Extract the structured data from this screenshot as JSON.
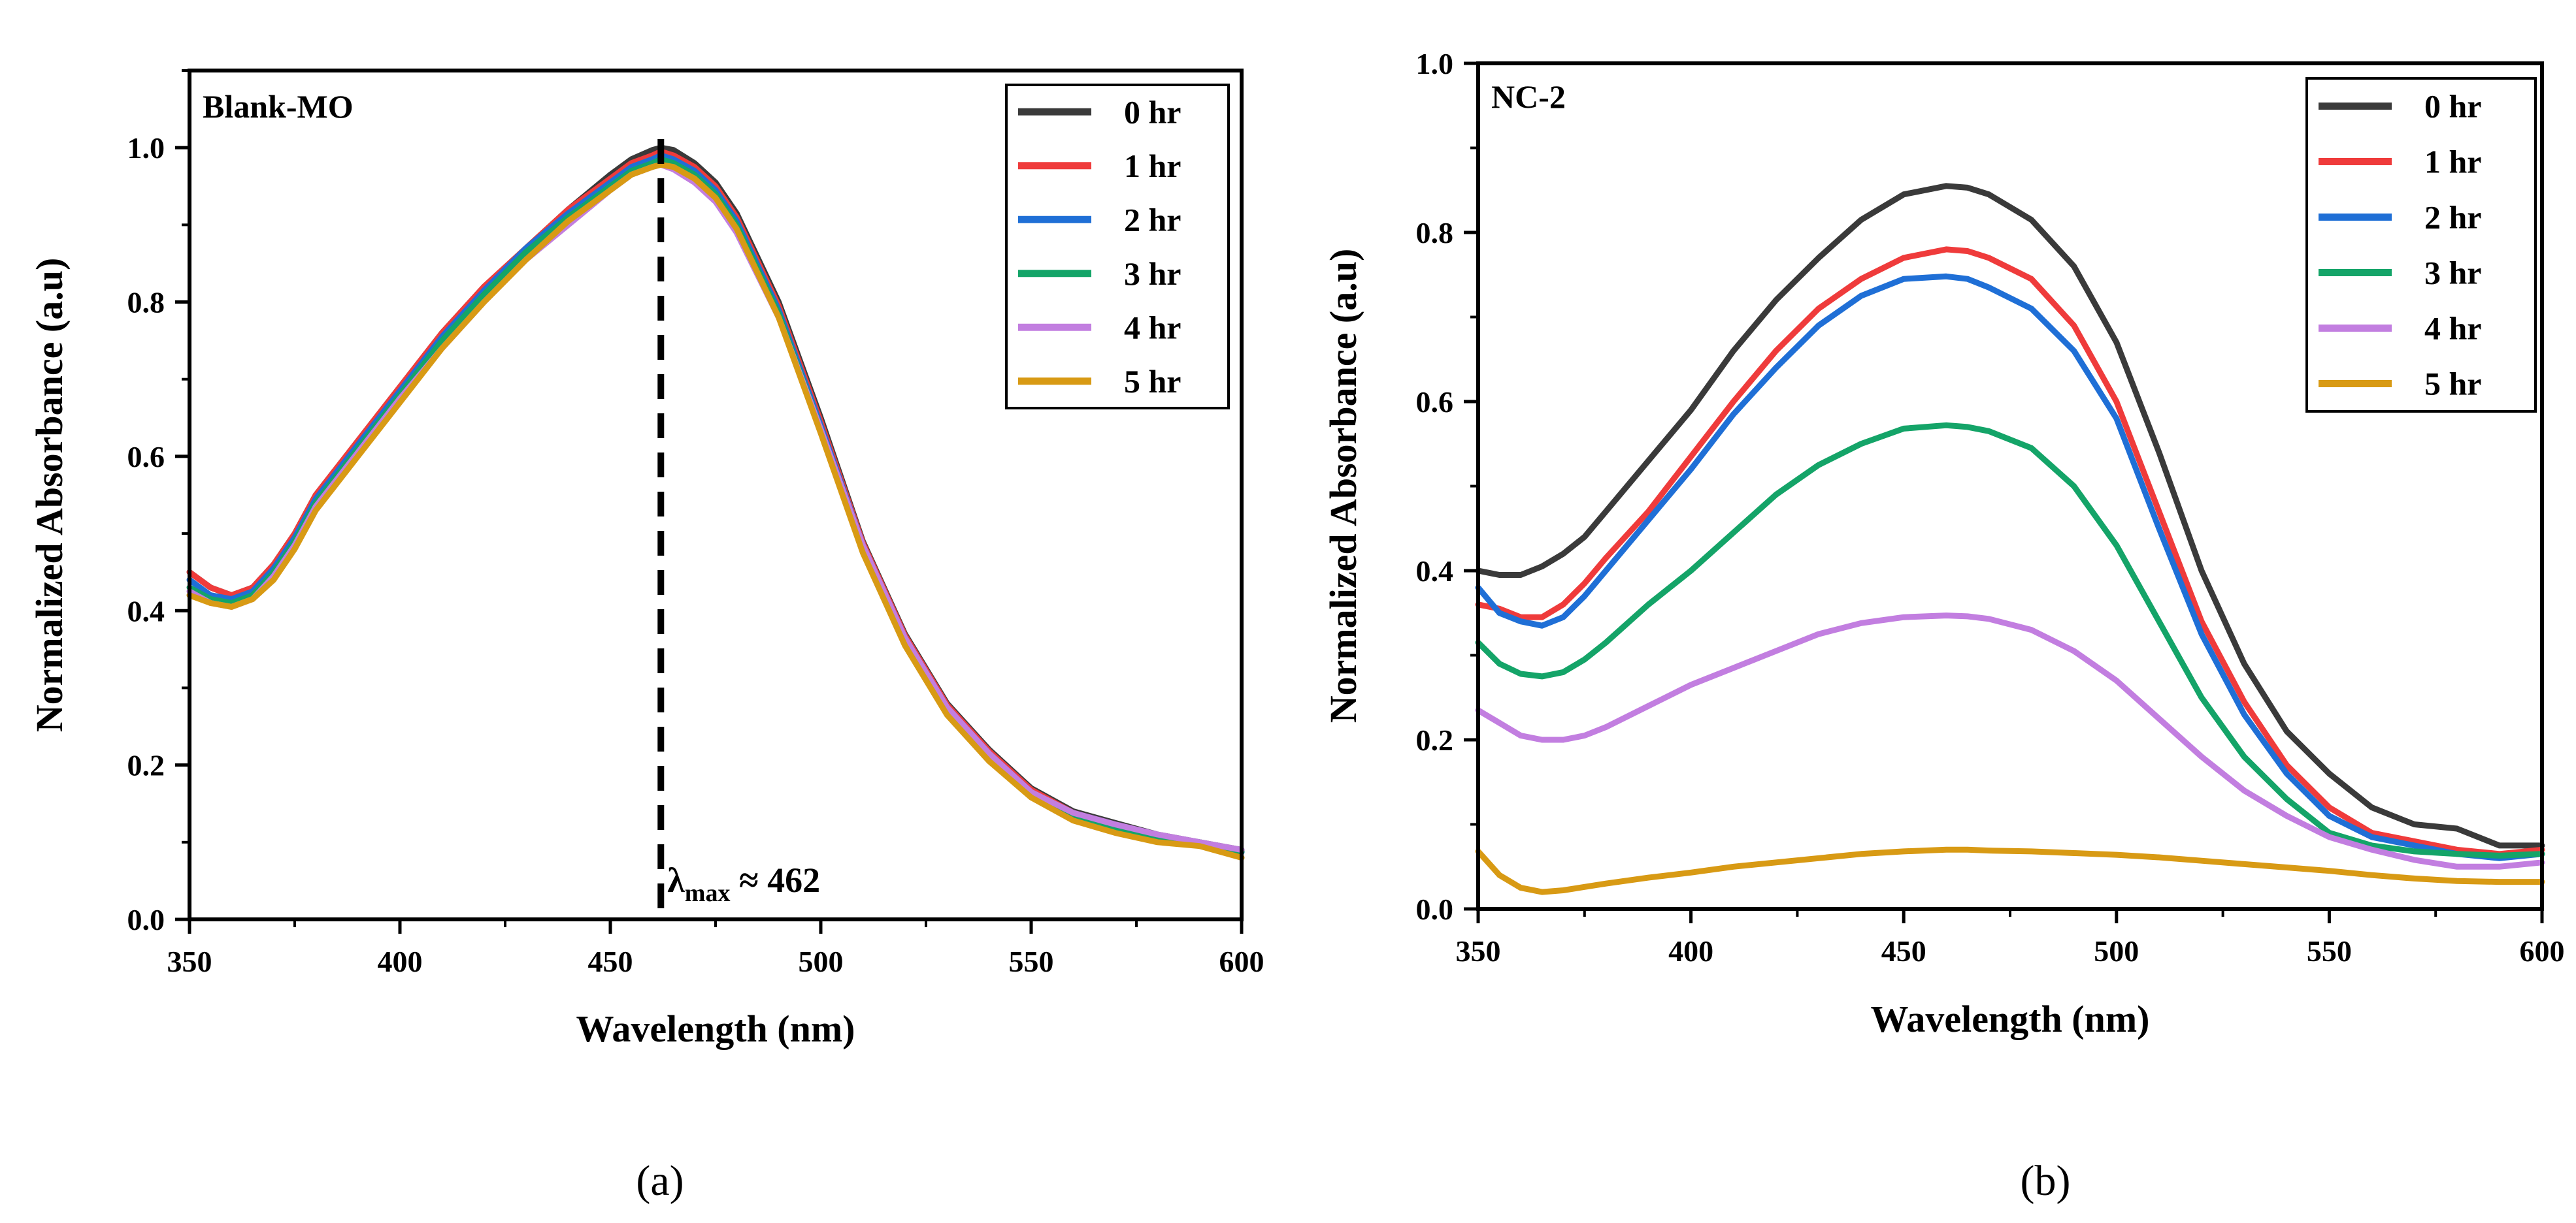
{
  "chart_data": [
    {
      "type": "line",
      "panel_label": "(a)",
      "title": "Blank-MO",
      "xlabel": "Wavelength (nm)",
      "ylabel": "Normalized Absorbance (a.u)",
      "xlim": [
        350,
        600
      ],
      "ylim": [
        0,
        1.1
      ],
      "xticks": [
        350,
        400,
        450,
        500,
        550,
        600
      ],
      "yticks": [
        0.0,
        0.2,
        0.4,
        0.6,
        0.8,
        1.0
      ],
      "grid": false,
      "legend_position": "top-right",
      "annotation": {
        "x": 462,
        "text_prefix": "λ",
        "text_sub": "max",
        "text_suffix": " ≈ 462"
      },
      "x": [
        350,
        355,
        360,
        365,
        370,
        375,
        380,
        390,
        400,
        410,
        420,
        430,
        440,
        450,
        455,
        460,
        462,
        465,
        470,
        475,
        480,
        490,
        500,
        510,
        520,
        530,
        540,
        550,
        560,
        570,
        580,
        590,
        600
      ],
      "series": [
        {
          "name": "0 hr",
          "color": "#3a3a3a",
          "values": [
            0.45,
            0.43,
            0.42,
            0.43,
            0.46,
            0.5,
            0.55,
            0.62,
            0.69,
            0.76,
            0.82,
            0.87,
            0.92,
            0.965,
            0.985,
            0.997,
            1.0,
            0.997,
            0.98,
            0.955,
            0.915,
            0.8,
            0.65,
            0.49,
            0.37,
            0.28,
            0.22,
            0.17,
            0.14,
            0.125,
            0.11,
            0.1,
            0.09
          ]
        },
        {
          "name": "1 hr",
          "color": "#ef3b3b",
          "values": [
            0.45,
            0.43,
            0.42,
            0.43,
            0.46,
            0.5,
            0.55,
            0.62,
            0.69,
            0.76,
            0.82,
            0.87,
            0.92,
            0.96,
            0.98,
            0.99,
            0.995,
            0.99,
            0.975,
            0.95,
            0.91,
            0.795,
            0.645,
            0.488,
            0.368,
            0.278,
            0.218,
            0.168,
            0.138,
            0.122,
            0.108,
            0.098,
            0.088
          ]
        },
        {
          "name": "2 hr",
          "color": "#1f6fd6",
          "values": [
            0.44,
            0.42,
            0.415,
            0.425,
            0.455,
            0.495,
            0.545,
            0.615,
            0.685,
            0.755,
            0.815,
            0.87,
            0.915,
            0.955,
            0.975,
            0.985,
            0.99,
            0.985,
            0.97,
            0.945,
            0.905,
            0.79,
            0.64,
            0.485,
            0.365,
            0.275,
            0.215,
            0.165,
            0.135,
            0.12,
            0.107,
            0.097,
            0.087
          ]
        },
        {
          "name": "3 hr",
          "color": "#14a468",
          "values": [
            0.43,
            0.415,
            0.41,
            0.42,
            0.45,
            0.49,
            0.54,
            0.61,
            0.68,
            0.75,
            0.81,
            0.865,
            0.91,
            0.95,
            0.97,
            0.98,
            0.985,
            0.98,
            0.965,
            0.94,
            0.9,
            0.785,
            0.635,
            0.48,
            0.36,
            0.27,
            0.21,
            0.16,
            0.132,
            0.118,
            0.106,
            0.1,
            0.088
          ]
        },
        {
          "name": "4 hr",
          "color": "#c27ee0",
          "values": [
            0.425,
            0.41,
            0.405,
            0.415,
            0.445,
            0.485,
            0.535,
            0.605,
            0.675,
            0.74,
            0.8,
            0.855,
            0.9,
            0.945,
            0.965,
            0.975,
            0.978,
            0.972,
            0.955,
            0.93,
            0.89,
            0.78,
            0.635,
            0.485,
            0.365,
            0.275,
            0.215,
            0.165,
            0.138,
            0.123,
            0.11,
            0.1,
            0.09
          ]
        },
        {
          "name": "5 hr",
          "color": "#d89a14",
          "values": [
            0.42,
            0.41,
            0.405,
            0.415,
            0.44,
            0.48,
            0.53,
            0.6,
            0.67,
            0.74,
            0.8,
            0.855,
            0.905,
            0.945,
            0.965,
            0.975,
            0.978,
            0.975,
            0.96,
            0.935,
            0.895,
            0.78,
            0.63,
            0.475,
            0.355,
            0.265,
            0.205,
            0.158,
            0.128,
            0.112,
            0.1,
            0.095,
            0.08
          ]
        }
      ]
    },
    {
      "type": "line",
      "panel_label": "(b)",
      "title": "NC-2",
      "xlabel": "Wavelength (nm)",
      "ylabel": "Normalized Absorbance (a.u)",
      "xlim": [
        350,
        600
      ],
      "ylim": [
        0,
        1.0
      ],
      "xticks": [
        350,
        400,
        450,
        500,
        550,
        600
      ],
      "yticks": [
        0.0,
        0.2,
        0.4,
        0.6,
        0.8,
        1.0
      ],
      "grid": false,
      "legend_position": "top-right",
      "x": [
        350,
        355,
        360,
        365,
        370,
        375,
        380,
        390,
        400,
        410,
        420,
        430,
        440,
        450,
        460,
        465,
        470,
        480,
        490,
        500,
        510,
        520,
        530,
        540,
        550,
        560,
        570,
        580,
        590,
        600
      ],
      "series": [
        {
          "name": "0 hr",
          "color": "#3a3a3a",
          "values": [
            0.4,
            0.395,
            0.395,
            0.405,
            0.42,
            0.44,
            0.47,
            0.53,
            0.59,
            0.66,
            0.72,
            0.77,
            0.815,
            0.845,
            0.855,
            0.853,
            0.845,
            0.815,
            0.76,
            0.67,
            0.54,
            0.4,
            0.29,
            0.21,
            0.16,
            0.12,
            0.1,
            0.095,
            0.075,
            0.075
          ]
        },
        {
          "name": "1 hr",
          "color": "#ef3b3b",
          "values": [
            0.36,
            0.355,
            0.345,
            0.345,
            0.36,
            0.385,
            0.415,
            0.47,
            0.535,
            0.6,
            0.66,
            0.71,
            0.745,
            0.77,
            0.78,
            0.778,
            0.77,
            0.745,
            0.69,
            0.6,
            0.47,
            0.34,
            0.245,
            0.17,
            0.12,
            0.09,
            0.08,
            0.07,
            0.065,
            0.07
          ]
        },
        {
          "name": "2 hr",
          "color": "#1f6fd6",
          "values": [
            0.38,
            0.35,
            0.34,
            0.335,
            0.345,
            0.37,
            0.4,
            0.46,
            0.52,
            0.585,
            0.64,
            0.69,
            0.725,
            0.745,
            0.748,
            0.745,
            0.735,
            0.71,
            0.66,
            0.58,
            0.45,
            0.325,
            0.23,
            0.16,
            0.11,
            0.085,
            0.075,
            0.065,
            0.06,
            0.065
          ]
        },
        {
          "name": "3 hr",
          "color": "#14a468",
          "values": [
            0.315,
            0.29,
            0.278,
            0.275,
            0.28,
            0.295,
            0.315,
            0.36,
            0.4,
            0.445,
            0.49,
            0.525,
            0.55,
            0.568,
            0.572,
            0.57,
            0.565,
            0.545,
            0.5,
            0.43,
            0.34,
            0.25,
            0.18,
            0.13,
            0.09,
            0.075,
            0.068,
            0.065,
            0.063,
            0.065
          ]
        },
        {
          "name": "4 hr",
          "color": "#c27ee0",
          "values": [
            0.235,
            0.22,
            0.205,
            0.2,
            0.2,
            0.205,
            0.215,
            0.24,
            0.265,
            0.285,
            0.305,
            0.325,
            0.338,
            0.345,
            0.347,
            0.346,
            0.343,
            0.33,
            0.305,
            0.27,
            0.225,
            0.18,
            0.14,
            0.11,
            0.085,
            0.07,
            0.058,
            0.05,
            0.05,
            0.055
          ]
        },
        {
          "name": "5 hr",
          "color": "#d89a14",
          "values": [
            0.068,
            0.04,
            0.025,
            0.02,
            0.022,
            0.026,
            0.03,
            0.037,
            0.043,
            0.05,
            0.055,
            0.06,
            0.065,
            0.068,
            0.07,
            0.07,
            0.069,
            0.068,
            0.066,
            0.064,
            0.061,
            0.057,
            0.053,
            0.049,
            0.045,
            0.04,
            0.036,
            0.033,
            0.032,
            0.032
          ]
        }
      ]
    }
  ]
}
